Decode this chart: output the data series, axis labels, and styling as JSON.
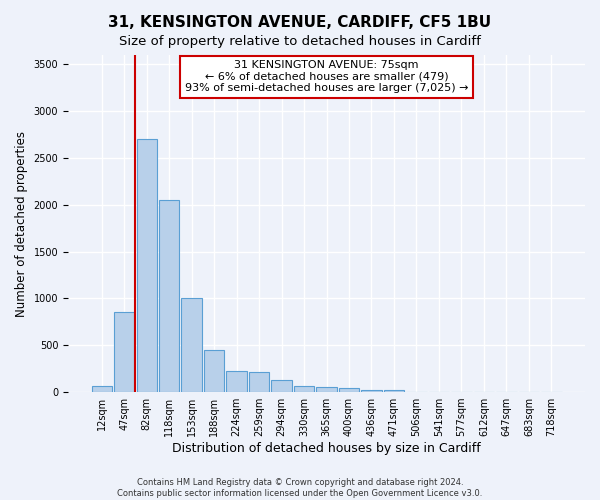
{
  "title_line1": "31, KENSINGTON AVENUE, CARDIFF, CF5 1BU",
  "title_line2": "Size of property relative to detached houses in Cardiff",
  "xlabel": "Distribution of detached houses by size in Cardiff",
  "ylabel": "Number of detached properties",
  "categories": [
    "12sqm",
    "47sqm",
    "82sqm",
    "118sqm",
    "153sqm",
    "188sqm",
    "224sqm",
    "259sqm",
    "294sqm",
    "330sqm",
    "365sqm",
    "400sqm",
    "436sqm",
    "471sqm",
    "506sqm",
    "541sqm",
    "577sqm",
    "612sqm",
    "647sqm",
    "683sqm",
    "718sqm"
  ],
  "values": [
    60,
    850,
    2700,
    2050,
    1000,
    450,
    220,
    215,
    130,
    60,
    50,
    40,
    25,
    20,
    0,
    0,
    0,
    0,
    0,
    0,
    0
  ],
  "bar_color": "#b8d0ea",
  "bar_edge_color": "#5a9fd4",
  "annotation_title": "31 KENSINGTON AVENUE: 75sqm",
  "annotation_line1": "← 6% of detached houses are smaller (479)",
  "annotation_line2": "93% of semi-detached houses are larger (7,025) →",
  "annotation_box_color": "#ffffff",
  "annotation_box_edge": "#cc0000",
  "vline_color": "#cc0000",
  "footer_line1": "Contains HM Land Registry data © Crown copyright and database right 2024.",
  "footer_line2": "Contains public sector information licensed under the Open Government Licence v3.0.",
  "ylim": [
    0,
    3600
  ],
  "yticks": [
    0,
    500,
    1000,
    1500,
    2000,
    2500,
    3000,
    3500
  ],
  "background_color": "#eef2fa",
  "grid_color": "#ffffff",
  "title_fontsize": 11,
  "subtitle_fontsize": 9.5,
  "xlabel_fontsize": 9,
  "ylabel_fontsize": 8.5,
  "tick_fontsize": 7,
  "annotation_fontsize": 8,
  "footer_fontsize": 6
}
